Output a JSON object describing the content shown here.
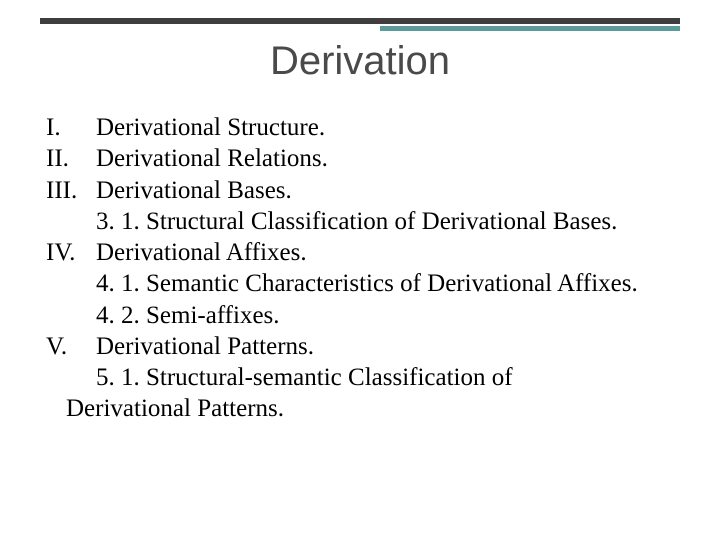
{
  "title": "Derivation",
  "colors": {
    "top_rule": "#3e3e3e",
    "accent_rule": "#5b9b9b",
    "title_color": "#4a4a4a",
    "body_color": "#000000",
    "background": "#ffffff"
  },
  "typography": {
    "title_fontsize": 40,
    "body_fontsize": 25,
    "title_font": "Verdana",
    "body_font": "Georgia"
  },
  "items": {
    "i_num": "I.",
    "i_txt": "Derivational Structure.",
    "ii_num": "II.",
    "ii_txt": "Derivational Relations.",
    "iii_num": "III.",
    "iii_txt": "Derivational Bases.",
    "iii_sub": "3. 1. Structural Classification of Derivational Bases.",
    "iv_num": "IV.",
    "iv_txt": "Derivational Affixes.",
    "iv_sub1": "4. 1. Semantic Characteristics of Derivational Affixes.",
    "iv_sub2": "4. 2. Semi-affixes.",
    "v_num": "V.",
    "v_txt": "Derivational Patterns.",
    "v_sub_a": "5. 1. Structural-semantic Classification of",
    "v_sub_b": "Derivational Patterns."
  }
}
